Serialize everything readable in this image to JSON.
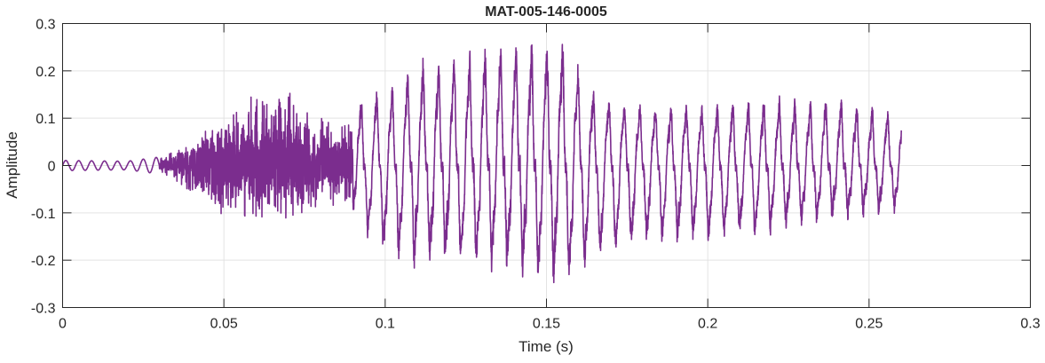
{
  "chart_data": {
    "type": "line",
    "title": "MAT-005-146-0005",
    "xlabel": "Time (s)",
    "ylabel": "Amplitude",
    "xlim": [
      0,
      0.3
    ],
    "ylim": [
      -0.3,
      0.3
    ],
    "xticks": [
      0,
      0.05,
      0.1,
      0.15,
      0.2,
      0.25,
      0.3
    ],
    "xtick_labels": [
      "0",
      "0.05",
      "0.1",
      "0.15",
      "0.2",
      "0.25",
      "0.3"
    ],
    "yticks": [
      -0.3,
      -0.2,
      -0.1,
      0,
      0.1,
      0.2,
      0.3
    ],
    "ytick_labels": [
      "-0.3",
      "-0.2",
      "-0.1",
      "0",
      "0.1",
      "0.2",
      "0.3"
    ],
    "grid": true,
    "series": [
      {
        "name": "MAT-005-146-0005",
        "color": "#7B2D8E",
        "description_note": "audio waveform; envelope given as [time, max, min]",
        "envelope": [
          [
            0.0,
            0.012,
            -0.012
          ],
          [
            0.02,
            0.01,
            -0.01
          ],
          [
            0.03,
            0.02,
            -0.02
          ],
          [
            0.035,
            0.03,
            -0.03
          ],
          [
            0.04,
            0.06,
            -0.07
          ],
          [
            0.05,
            0.12,
            -0.11
          ],
          [
            0.06,
            0.15,
            -0.13
          ],
          [
            0.07,
            0.17,
            -0.13
          ],
          [
            0.08,
            0.12,
            -0.1
          ],
          [
            0.088,
            0.1,
            -0.08
          ],
          [
            0.092,
            0.13,
            -0.12
          ],
          [
            0.1,
            0.15,
            -0.17
          ],
          [
            0.113,
            0.21,
            -0.2
          ],
          [
            0.125,
            0.22,
            -0.19
          ],
          [
            0.14,
            0.24,
            -0.2
          ],
          [
            0.155,
            0.245,
            -0.24
          ],
          [
            0.165,
            0.14,
            -0.2
          ],
          [
            0.18,
            0.12,
            -0.15
          ],
          [
            0.2,
            0.12,
            -0.15
          ],
          [
            0.22,
            0.13,
            -0.13
          ],
          [
            0.24,
            0.13,
            -0.1
          ],
          [
            0.26,
            0.1,
            -0.09
          ]
        ],
        "t_end": 0.26
      }
    ]
  }
}
